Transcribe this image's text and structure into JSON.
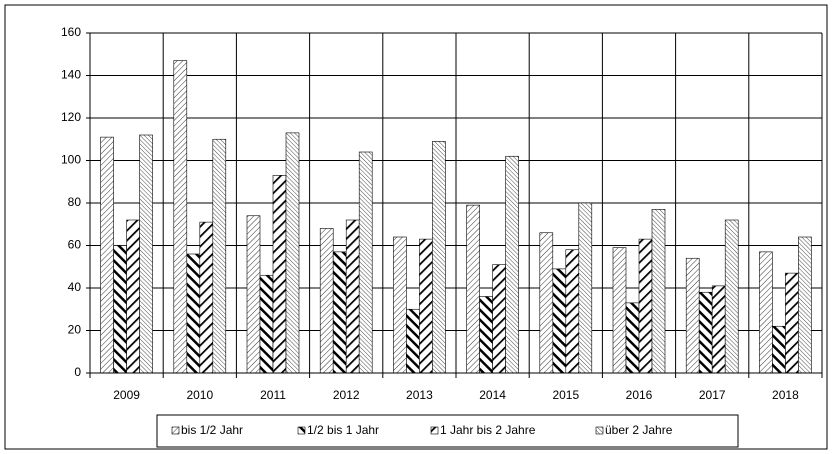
{
  "chart_data": {
    "type": "bar",
    "categories": [
      "2009",
      "2010",
      "2011",
      "2012",
      "2013",
      "2014",
      "2015",
      "2016",
      "2017",
      "2018"
    ],
    "series": [
      {
        "name": "bis 1/2 Jahr",
        "color": "#000000",
        "values": [
          111,
          147,
          74,
          68,
          64,
          79,
          66,
          59,
          54,
          57
        ]
      },
      {
        "name": "1/2 bis 1 Jahr",
        "color": "#000000",
        "values": [
          60,
          56,
          46,
          57,
          30,
          36,
          49,
          33,
          38,
          22
        ]
      },
      {
        "name": "1 Jahr bis 2 Jahre",
        "color": "#000000",
        "values": [
          72,
          71,
          93,
          72,
          63,
          51,
          58,
          63,
          41,
          47
        ]
      },
      {
        "name": "über 2 Jahre",
        "color": "#000000",
        "values": [
          112,
          110,
          113,
          104,
          109,
          102,
          80,
          77,
          72,
          64
        ]
      }
    ],
    "ylim": [
      0,
      160
    ],
    "yticks": [
      0,
      20,
      40,
      60,
      80,
      100,
      120,
      140,
      160
    ],
    "grid": true,
    "legend": "bottom"
  }
}
